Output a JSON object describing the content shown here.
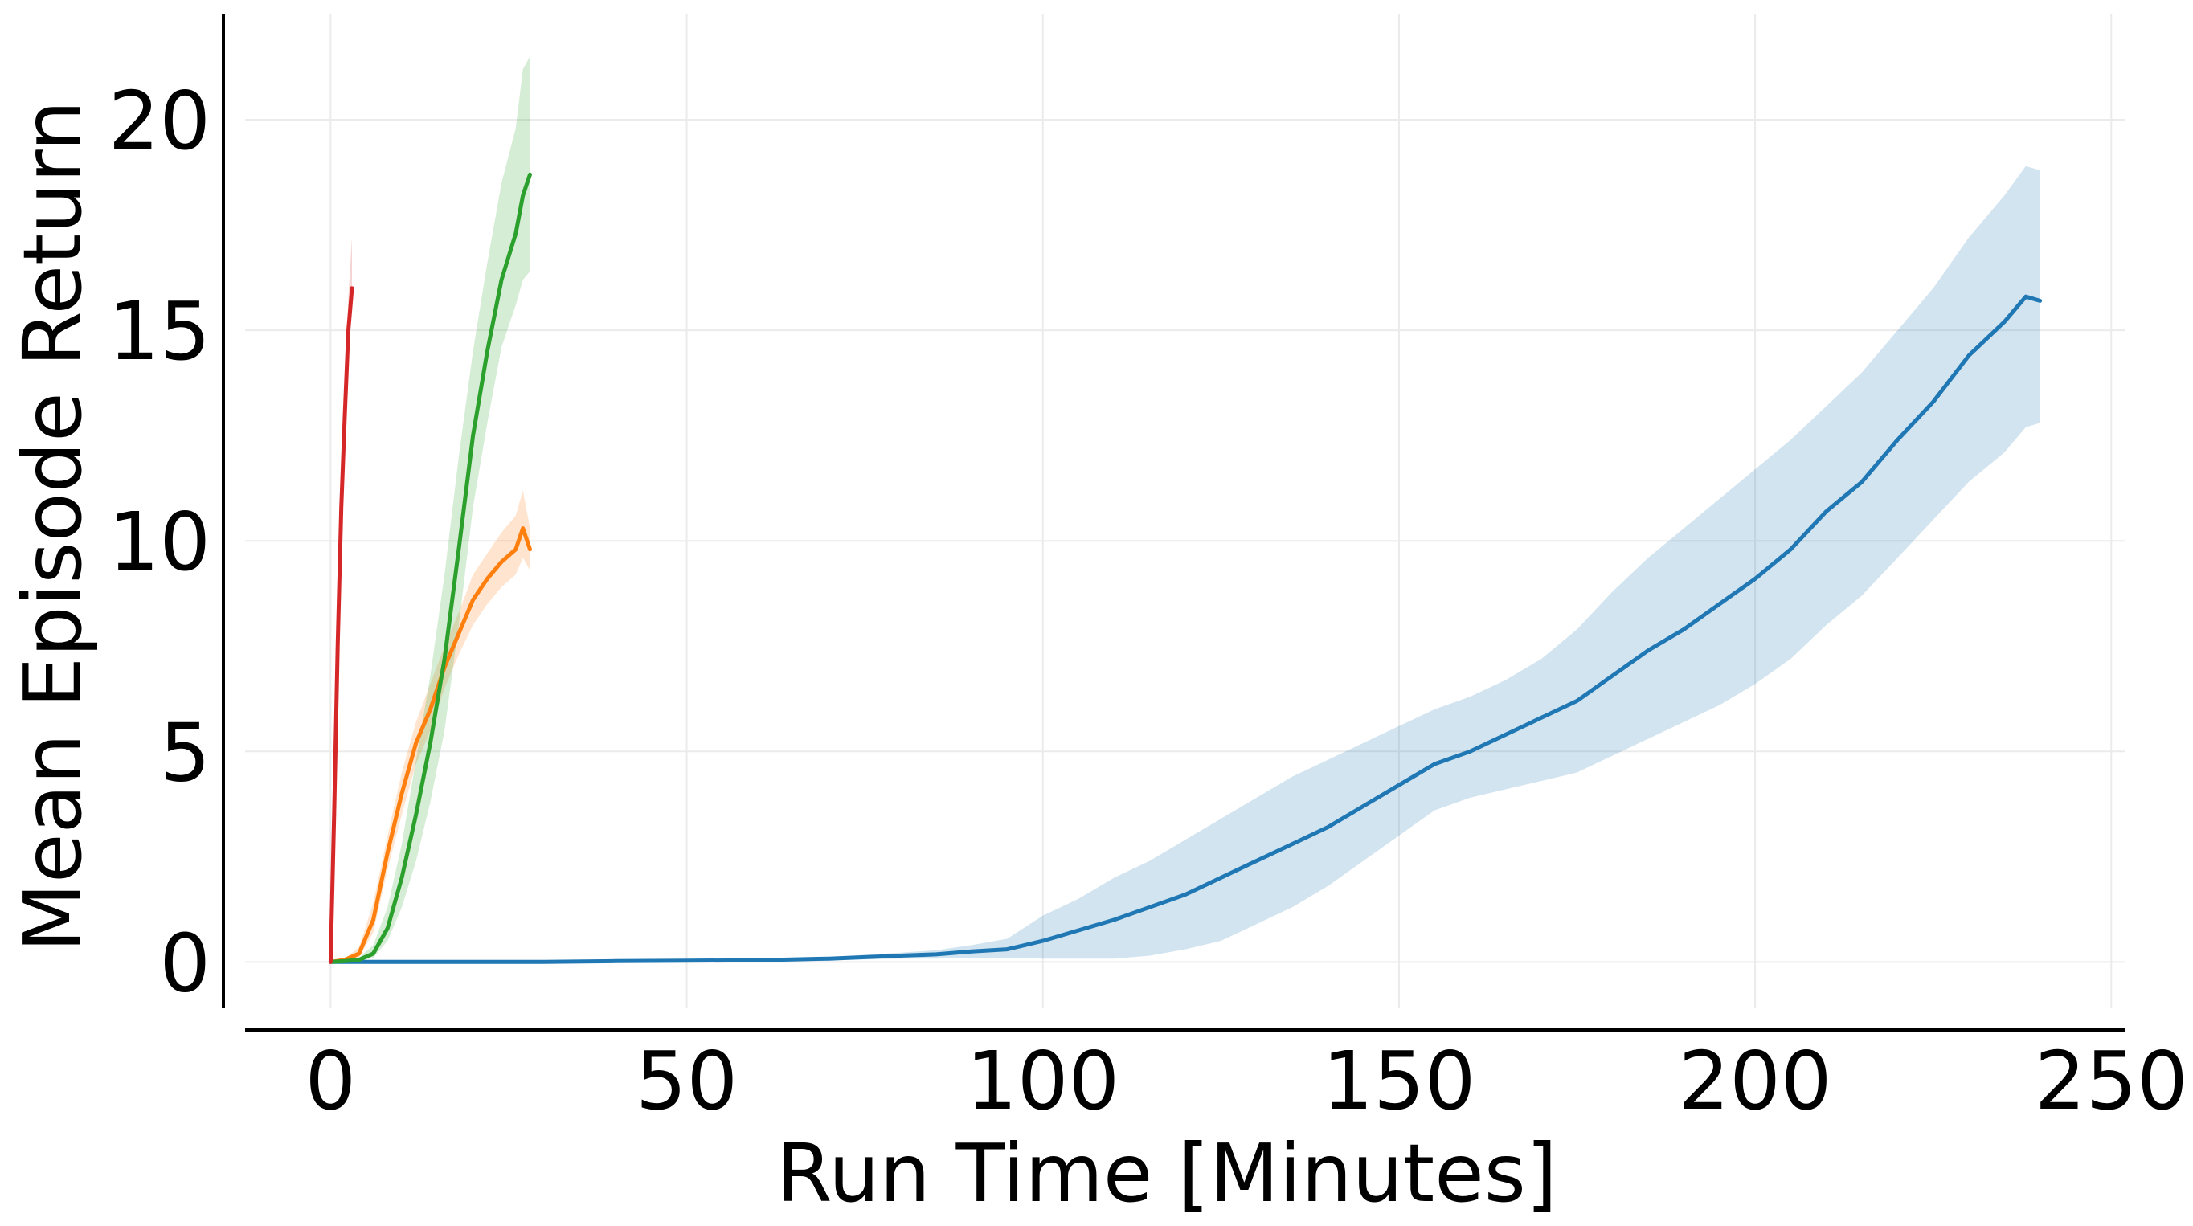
{
  "chart_data": {
    "type": "line",
    "title": "",
    "xlabel": "Run Time [Minutes]",
    "ylabel": "Mean Episode Return",
    "xlim": [
      -12,
      252
    ],
    "ylim": [
      -1.1,
      22.5
    ],
    "xticks": [
      0,
      50,
      100,
      150,
      200,
      250
    ],
    "yticks": [
      0,
      5,
      10,
      15,
      20
    ],
    "grid": true,
    "legend": "none",
    "series": [
      {
        "color": "#1f77b4",
        "band_color": "#1f77b4",
        "x": [
          0,
          10,
          20,
          30,
          40,
          50,
          60,
          70,
          80,
          85,
          90,
          95,
          100,
          105,
          110,
          115,
          120,
          125,
          130,
          135,
          140,
          145,
          150,
          155,
          160,
          165,
          170,
          175,
          180,
          185,
          190,
          195,
          200,
          205,
          210,
          215,
          220,
          225,
          230,
          235,
          238,
          240
        ],
        "y": [
          0,
          0,
          0,
          0,
          0.02,
          0.03,
          0.04,
          0.08,
          0.15,
          0.18,
          0.25,
          0.3,
          0.5,
          0.75,
          1.0,
          1.3,
          1.6,
          2.0,
          2.4,
          2.8,
          3.2,
          3.7,
          4.2,
          4.7,
          5.0,
          5.4,
          5.8,
          6.2,
          6.8,
          7.4,
          7.9,
          8.5,
          9.1,
          9.8,
          10.7,
          11.4,
          12.4,
          13.3,
          14.4,
          15.2,
          15.8,
          15.7
        ],
        "lower": [
          0,
          0,
          0,
          0,
          0.01,
          0.02,
          0.02,
          0.04,
          0.08,
          0.08,
          0.1,
          0.1,
          0.08,
          0.08,
          0.08,
          0.15,
          0.3,
          0.5,
          0.9,
          1.3,
          1.8,
          2.4,
          3.0,
          3.6,
          3.9,
          4.1,
          4.3,
          4.5,
          4.9,
          5.3,
          5.7,
          6.1,
          6.6,
          7.2,
          8.0,
          8.7,
          9.6,
          10.5,
          11.4,
          12.1,
          12.7,
          12.8
        ],
        "upper": [
          0,
          0,
          0,
          0,
          0.03,
          0.04,
          0.06,
          0.12,
          0.22,
          0.28,
          0.4,
          0.55,
          1.1,
          1.5,
          2.0,
          2.4,
          2.9,
          3.4,
          3.9,
          4.4,
          4.8,
          5.2,
          5.6,
          6.0,
          6.3,
          6.7,
          7.2,
          7.9,
          8.8,
          9.6,
          10.3,
          11.0,
          11.7,
          12.4,
          13.2,
          14.0,
          15.0,
          16.0,
          17.2,
          18.2,
          18.9,
          18.8
        ]
      },
      {
        "color": "#ff7f0e",
        "band_color": "#ff7f0e",
        "x": [
          0,
          2,
          4,
          6,
          8,
          10,
          12,
          14,
          16,
          18,
          20,
          22,
          24,
          26,
          27,
          28
        ],
        "y": [
          0,
          0.05,
          0.2,
          1.0,
          2.6,
          4.0,
          5.2,
          6.0,
          7.0,
          7.8,
          8.6,
          9.1,
          9.5,
          9.8,
          10.3,
          9.8
        ],
        "lower": [
          0,
          0.03,
          0.1,
          0.7,
          2.2,
          3.5,
          4.7,
          5.5,
          6.5,
          7.3,
          8.0,
          8.5,
          8.9,
          9.2,
          9.6,
          9.3
        ],
        "upper": [
          0,
          0.08,
          0.35,
          1.4,
          3.0,
          4.5,
          5.7,
          6.6,
          7.5,
          8.3,
          9.2,
          9.7,
          10.2,
          10.6,
          11.2,
          10.3
        ]
      },
      {
        "color": "#2ca02c",
        "band_color": "#2ca02c",
        "x": [
          0,
          2,
          4,
          6,
          8,
          10,
          12,
          14,
          16,
          18,
          20,
          22,
          24,
          26,
          27,
          28
        ],
        "y": [
          0,
          0.02,
          0.05,
          0.2,
          0.8,
          2.0,
          3.5,
          5.2,
          7.2,
          9.8,
          12.5,
          14.5,
          16.2,
          17.3,
          18.2,
          18.7
        ],
        "lower": [
          0,
          0.01,
          0.02,
          0.1,
          0.5,
          1.3,
          2.4,
          3.8,
          5.5,
          8.0,
          10.8,
          12.8,
          14.6,
          15.6,
          16.2,
          16.4
        ],
        "upper": [
          0,
          0.03,
          0.1,
          0.4,
          1.3,
          2.8,
          4.8,
          6.8,
          9.2,
          12.0,
          14.5,
          16.6,
          18.5,
          19.8,
          21.2,
          21.5
        ]
      },
      {
        "color": "#d62728",
        "band_color": "#d62728",
        "x": [
          0,
          0.5,
          1.0,
          1.5,
          2.0,
          2.5,
          3.0
        ],
        "y": [
          0,
          3.5,
          7.5,
          10.8,
          13.0,
          15.0,
          16.0
        ],
        "lower": [
          0,
          3.2,
          7.0,
          10.3,
          12.5,
          14.5,
          15.5
        ],
        "upper": [
          0,
          3.9,
          8.0,
          11.3,
          13.6,
          15.8,
          17.2
        ]
      }
    ]
  }
}
